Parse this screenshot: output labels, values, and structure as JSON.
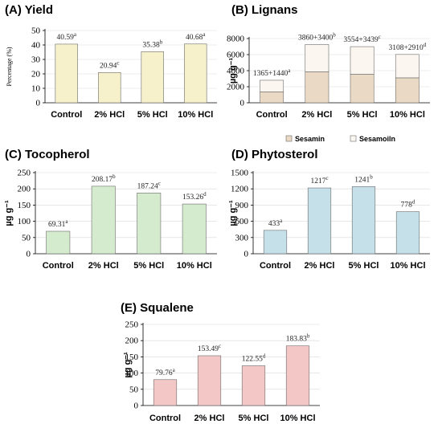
{
  "chart_data": [
    {
      "id": "A",
      "type": "bar",
      "title": "(A) Yield",
      "ylabel": "Percentage (%)",
      "ylim": [
        0,
        50
      ],
      "yticks": [
        0,
        10,
        20,
        30,
        40,
        50
      ],
      "categories": [
        "Control",
        "2% HCl",
        "5% HCl",
        "10% HCl"
      ],
      "values": [
        40.59,
        20.94,
        35.38,
        40.68
      ],
      "labels": [
        "40.59",
        "20.94",
        "35.38",
        "40.68"
      ],
      "letters": [
        "a",
        "c",
        "b",
        "a"
      ],
      "color": "#f7f1cb"
    },
    {
      "id": "B",
      "type": "bar",
      "stacked": true,
      "title": "(B) Lignans",
      "ylabel": "µg g⁻¹",
      "ylim": [
        0,
        8000
      ],
      "yticks": [
        0,
        2000,
        4000,
        6000,
        8000
      ],
      "categories": [
        "Control",
        "2% HCl",
        "5% HCl",
        "10% HCl"
      ],
      "series": [
        {
          "name": "Sesamin",
          "values": [
            1365,
            3860,
            3554,
            3108
          ],
          "color": "#ead9c4"
        },
        {
          "name": "Sesamoiln",
          "values": [
            1440,
            3400,
            3439,
            2910
          ],
          "color": "#fbf6ef"
        }
      ],
      "labels": [
        "1365+1440",
        "3860+3400",
        "3554+3439",
        "3108+2910"
      ],
      "letters": [
        "a",
        "b",
        "c",
        "d"
      ],
      "legend": "bottom"
    },
    {
      "id": "C",
      "type": "bar",
      "title": "(C) Tocopherol",
      "ylabel": "µg g⁻¹",
      "ylim": [
        0,
        250
      ],
      "yticks": [
        0,
        50,
        100,
        150,
        200,
        250
      ],
      "categories": [
        "Control",
        "2% HCl",
        "5% HCl",
        "10% HCl"
      ],
      "values": [
        69.31,
        208.17,
        187.24,
        153.26
      ],
      "labels": [
        "69.31",
        "208.17",
        "187.24",
        "153.26"
      ],
      "letters": [
        "a",
        "b",
        "c",
        "d"
      ],
      "color": "#d5ebcd"
    },
    {
      "id": "D",
      "type": "bar",
      "title": "(D) Phytosterol",
      "ylabel": "µg g⁻¹",
      "ylim": [
        0,
        1500
      ],
      "yticks": [
        0,
        300,
        600,
        900,
        1200,
        1500
      ],
      "categories": [
        "Control",
        "2% HCl",
        "5% HCl",
        "10% HCl"
      ],
      "values": [
        433,
        1217,
        1241,
        778
      ],
      "labels": [
        "433",
        "1217",
        "1241",
        "778"
      ],
      "letters": [
        "a",
        "c",
        "b",
        "d"
      ],
      "color": "#c6e0ea"
    },
    {
      "id": "E",
      "type": "bar",
      "title": "(E) Squalene",
      "ylabel": "µg g⁻¹",
      "ylim": [
        0,
        250
      ],
      "yticks": [
        0,
        50,
        100,
        150,
        200,
        250
      ],
      "categories": [
        "Control",
        "2% HCl",
        "5% HCl",
        "10% HCl"
      ],
      "values": [
        79.76,
        153.49,
        122.55,
        183.83
      ],
      "labels": [
        "79.76",
        "153.49",
        "122.55",
        "183.83"
      ],
      "letters": [
        "a",
        "c",
        "d",
        "b"
      ],
      "color": "#f4c7c7"
    }
  ]
}
